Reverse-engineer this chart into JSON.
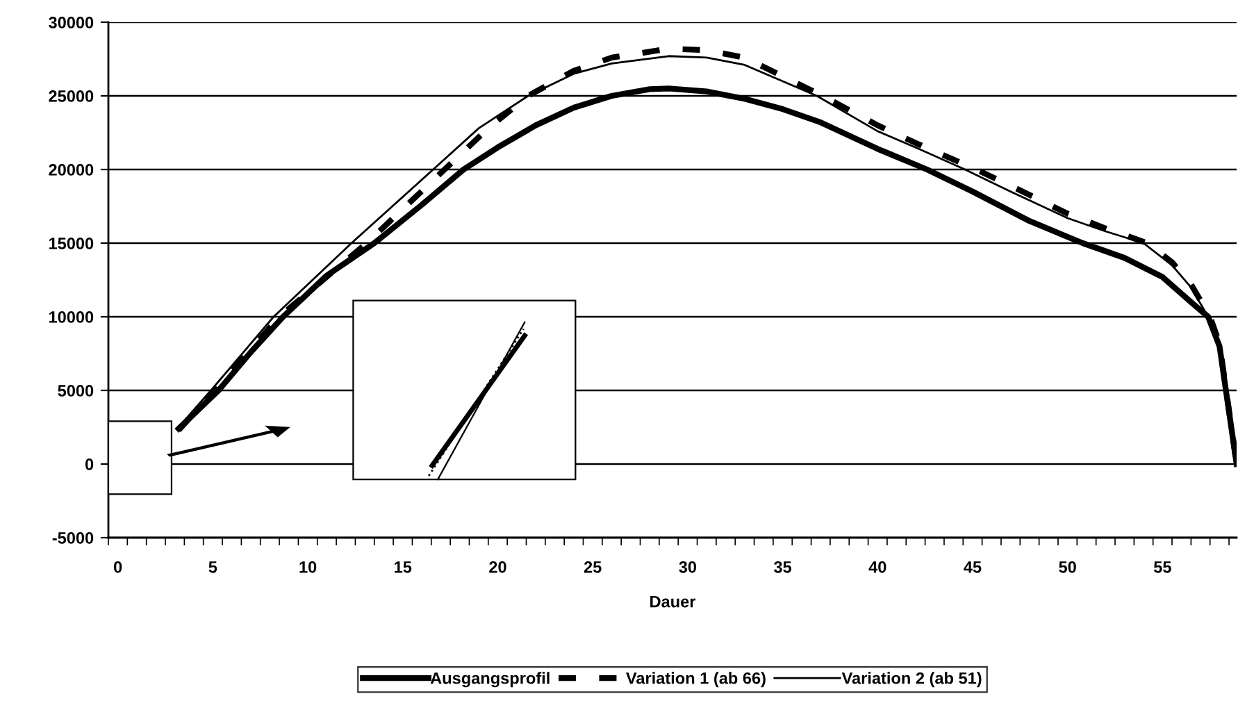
{
  "chart_data": {
    "type": "line",
    "xlabel": "Dauer",
    "xlim": [
      -0.5,
      58.9
    ],
    "xticks": [
      0,
      5,
      10,
      15,
      20,
      25,
      30,
      35,
      40,
      45,
      50,
      55,
      {
        "value": -0.5,
        "label": null
      },
      {
        "value": 0.5,
        "label": null
      },
      {
        "value": 1.5,
        "label": null
      },
      {
        "value": 2.5,
        "label": null
      },
      {
        "value": 3.5,
        "label": null
      },
      {
        "value": 4.5,
        "label": null
      },
      {
        "value": 5.5,
        "label": null
      },
      {
        "value": 6.5,
        "label": null
      },
      {
        "value": 7.5,
        "label": null
      },
      {
        "value": 8.5,
        "label": null
      },
      {
        "value": 9.5,
        "label": null
      },
      {
        "value": 10.5,
        "label": null
      },
      {
        "value": 11.5,
        "label": null
      },
      {
        "value": 12.5,
        "label": null
      },
      {
        "value": 13.5,
        "label": null
      },
      {
        "value": 14.5,
        "label": null
      },
      {
        "value": 15.5,
        "label": null
      },
      {
        "value": 16.5,
        "label": null
      },
      {
        "value": 17.5,
        "label": null
      },
      {
        "value": 18.5,
        "label": null
      },
      {
        "value": 19.5,
        "label": null
      },
      {
        "value": 20.5,
        "label": null
      },
      {
        "value": 21.5,
        "label": null
      },
      {
        "value": 22.5,
        "label": null
      },
      {
        "value": 23.5,
        "label": null
      },
      {
        "value": 24.5,
        "label": null
      },
      {
        "value": 25.5,
        "label": null
      },
      {
        "value": 26.5,
        "label": null
      },
      {
        "value": 27.5,
        "label": null
      },
      {
        "value": 28.5,
        "label": null
      },
      {
        "value": 29.5,
        "label": null
      },
      {
        "value": 30.5,
        "label": null
      },
      {
        "value": 31.5,
        "label": null
      },
      {
        "value": 32.5,
        "label": null
      },
      {
        "value": 33.5,
        "label": null
      },
      {
        "value": 34.5,
        "label": null
      },
      {
        "value": 35.5,
        "label": null
      },
      {
        "value": 36.5,
        "label": null
      },
      {
        "value": 37.5,
        "label": null
      },
      {
        "value": 38.5,
        "label": null
      },
      {
        "value": 39.5,
        "label": null
      },
      {
        "value": 40.5,
        "label": null
      },
      {
        "value": 41.5,
        "label": null
      },
      {
        "value": 42.5,
        "label": null
      },
      {
        "value": 43.5,
        "label": null
      },
      {
        "value": 44.5,
        "label": null
      },
      {
        "value": 45.5,
        "label": null
      },
      {
        "value": 46.5,
        "label": null
      },
      {
        "value": 47.5,
        "label": null
      },
      {
        "value": 48.5,
        "label": null
      },
      {
        "value": 49.5,
        "label": null
      },
      {
        "value": 50.5,
        "label": null
      },
      {
        "value": 51.5,
        "label": null
      },
      {
        "value": 52.5,
        "label": null
      },
      {
        "value": 53.5,
        "label": null
      },
      {
        "value": 54.5,
        "label": null
      },
      {
        "value": 55.5,
        "label": null
      },
      {
        "value": 56.5,
        "label": null
      },
      {
        "value": 57.5,
        "label": null
      },
      {
        "value": 58.5,
        "label": null
      }
    ],
    "ylim": [
      -5000,
      30000
    ],
    "yticks": [
      -5000,
      0,
      5000,
      10000,
      15000,
      20000,
      25000,
      30000
    ],
    "grid": "y",
    "legend": "bottom",
    "marker": "none",
    "series": [
      {
        "name": "Ausgangsprofil",
        "color": "#000000",
        "line_style": "solid",
        "x": [
          3.2,
          5.3,
          7,
          8.7,
          11,
          13.5,
          16,
          18.2,
          20,
          22,
          24,
          26,
          28,
          29,
          31,
          33,
          35,
          37,
          40,
          42.6,
          45,
          48,
          50.8,
          53,
          55,
          56.5,
          57.4,
          58,
          58.9
        ],
        "values": [
          2400,
          5000,
          7600,
          10000,
          12800,
          15000,
          17600,
          20000,
          21500,
          23000,
          24200,
          25000,
          25450,
          25500,
          25300,
          24800,
          24100,
          23200,
          21400,
          20000,
          18500,
          16500,
          15000,
          14000,
          12700,
          11000,
          10000,
          8000,
          0
        ]
      },
      {
        "name": "Variation 1 (ab 66)",
        "color": "#000000",
        "line_style": "dashed",
        "x": [
          3.2,
          5.1,
          8.5,
          13.1,
          17.2,
          19.5,
          21.6,
          24,
          26,
          29,
          31,
          33,
          37.1,
          40,
          42,
          45.2,
          47,
          50,
          52,
          54.2,
          55.5,
          56.5,
          57.5,
          58,
          58.9
        ],
        "values": [
          2300,
          5000,
          10000,
          15000,
          20000,
          22800,
          25000,
          26700,
          27600,
          28200,
          28100,
          27600,
          25000,
          23000,
          21800,
          20000,
          18900,
          17000,
          16000,
          15000,
          13700,
          12200,
          10000,
          8200,
          0
        ]
      },
      {
        "name": "Variation 2 (ab 51)",
        "color": "#000000",
        "line_style": "solid",
        "x": [
          3.2,
          4.9,
          8.2,
          12.3,
          16.6,
          19,
          21.6,
          24,
          26,
          29,
          31,
          33,
          36.8,
          40,
          42,
          44.6,
          47,
          50,
          52,
          54,
          55.5,
          56.5,
          57.4,
          58,
          58.9
        ],
        "values": [
          2500,
          5000,
          10000,
          15000,
          20000,
          22800,
          25000,
          26500,
          27200,
          27700,
          27600,
          27100,
          25000,
          22600,
          21500,
          20000,
          18500,
          16700,
          15800,
          15000,
          13500,
          12000,
          10000,
          8000,
          0
        ]
      }
    ]
  }
}
